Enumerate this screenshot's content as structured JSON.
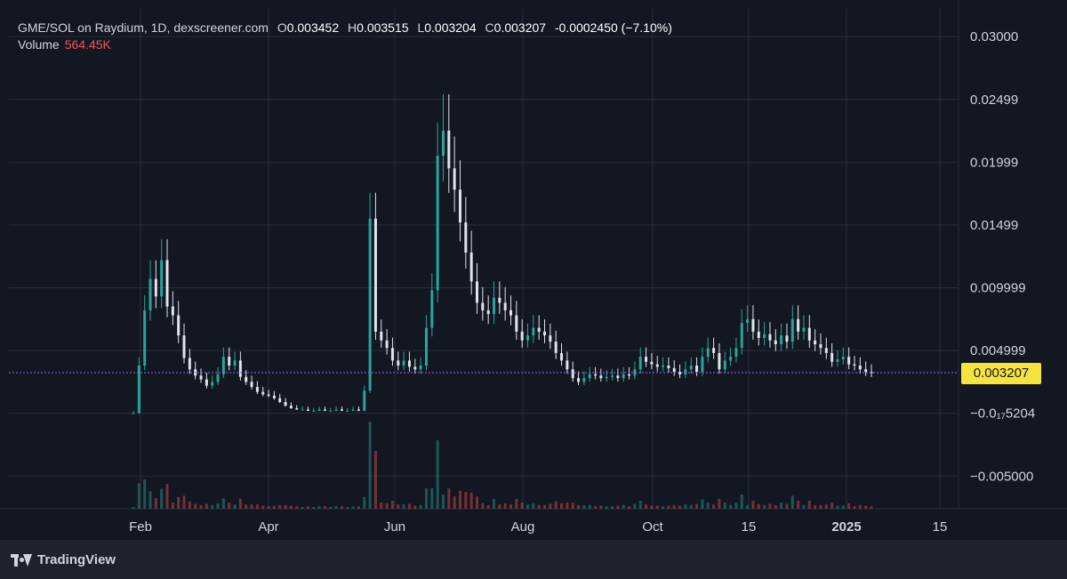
{
  "legend": {
    "pair": "GME/SOL on Raydium, 1D, dexscreener.com",
    "open_label": "O",
    "open": "0.003452",
    "high_label": "H",
    "high": "0.003515",
    "low_label": "L",
    "low": "0.003204",
    "close_label": "C",
    "close": "0.003207",
    "change": "-0.0002450 (−7.10%)"
  },
  "volume": {
    "label": "Volume",
    "value": "564.45K"
  },
  "last_price": "0.003207",
  "brand": "TradingView",
  "colors": {
    "up": "#26a69a",
    "down": "#ef5350",
    "background": "#131722",
    "grid": "#2a2e39",
    "price_line": "#9c6ade",
    "badge": "#f5e43d"
  },
  "chart_data": {
    "type": "line",
    "title": "GME/SOL on Raydium, 1D, dexscreener.com",
    "xlabel": "",
    "ylabel": "",
    "y_tick_labels": [
      "0.03000",
      "0.02499",
      "0.01999",
      "0.01499",
      "0.009999",
      "0.004999",
      "−0.0₁₇5204",
      "−0.005000"
    ],
    "y_tick_values": [
      0.03,
      0.02499,
      0.01999,
      0.01499,
      0.009999,
      0.004999,
      0.0,
      -0.005
    ],
    "x_tick_labels": [
      "Feb",
      "Apr",
      "Jun",
      "Aug",
      "Oct",
      "15",
      "2025",
      "15"
    ],
    "ylim": [
      -0.0076,
      0.0322
    ],
    "grid": true,
    "series": [
      {
        "values": [
          0.0,
          0.0038,
          0.0082,
          0.0107,
          0.0093,
          0.0122,
          0.0085,
          0.0078,
          0.0062,
          0.0044,
          0.0035,
          0.003,
          0.0027,
          0.0022,
          0.0025,
          0.0031,
          0.0045,
          0.0038,
          0.0042,
          0.0029,
          0.0025,
          0.0021,
          0.0017,
          0.0015,
          0.0014,
          0.0012,
          0.0009,
          0.0006,
          0.0004,
          0.0003,
          0.0003,
          0.0002,
          0.0002,
          0.0003,
          0.0002,
          0.0002,
          0.0003,
          0.0002,
          0.0002,
          0.0003,
          0.0002,
          0.0018,
          0.0155,
          0.0065,
          0.0058,
          0.0052,
          0.0042,
          0.0038,
          0.0042,
          0.0037,
          0.0035,
          0.0038,
          0.0068,
          0.0098,
          0.0205,
          0.0225,
          0.0195,
          0.0178,
          0.0152,
          0.0128,
          0.0105,
          0.0088,
          0.0082,
          0.0079,
          0.0092,
          0.0088,
          0.0082,
          0.0078,
          0.0065,
          0.0058,
          0.0062,
          0.0068,
          0.0065,
          0.0062,
          0.0057,
          0.0048,
          0.0042,
          0.0035,
          0.0028,
          0.0025,
          0.0028,
          0.0031,
          0.003,
          0.0028,
          0.0029,
          0.003,
          0.0028,
          0.0031,
          0.003,
          0.0035,
          0.0045,
          0.0041,
          0.0039,
          0.0037,
          0.0038,
          0.0036,
          0.0033,
          0.0031,
          0.0035,
          0.0038,
          0.0033,
          0.0045,
          0.0052,
          0.0048,
          0.0035,
          0.0042,
          0.0045,
          0.0052,
          0.0072,
          0.0075,
          0.0065,
          0.006,
          0.0063,
          0.0058,
          0.0055,
          0.0062,
          0.0057,
          0.0075,
          0.0065,
          0.0068,
          0.0058,
          0.0055,
          0.0052,
          0.0048,
          0.0041,
          0.0043,
          0.0045,
          0.0039,
          0.0038,
          0.0035,
          0.0033,
          0.0032
        ]
      }
    ],
    "x_range": [
      "2024-01-29",
      "2025-01-10"
    ],
    "volume": {
      "name": "Volume",
      "last_value": "564.45K"
    }
  }
}
